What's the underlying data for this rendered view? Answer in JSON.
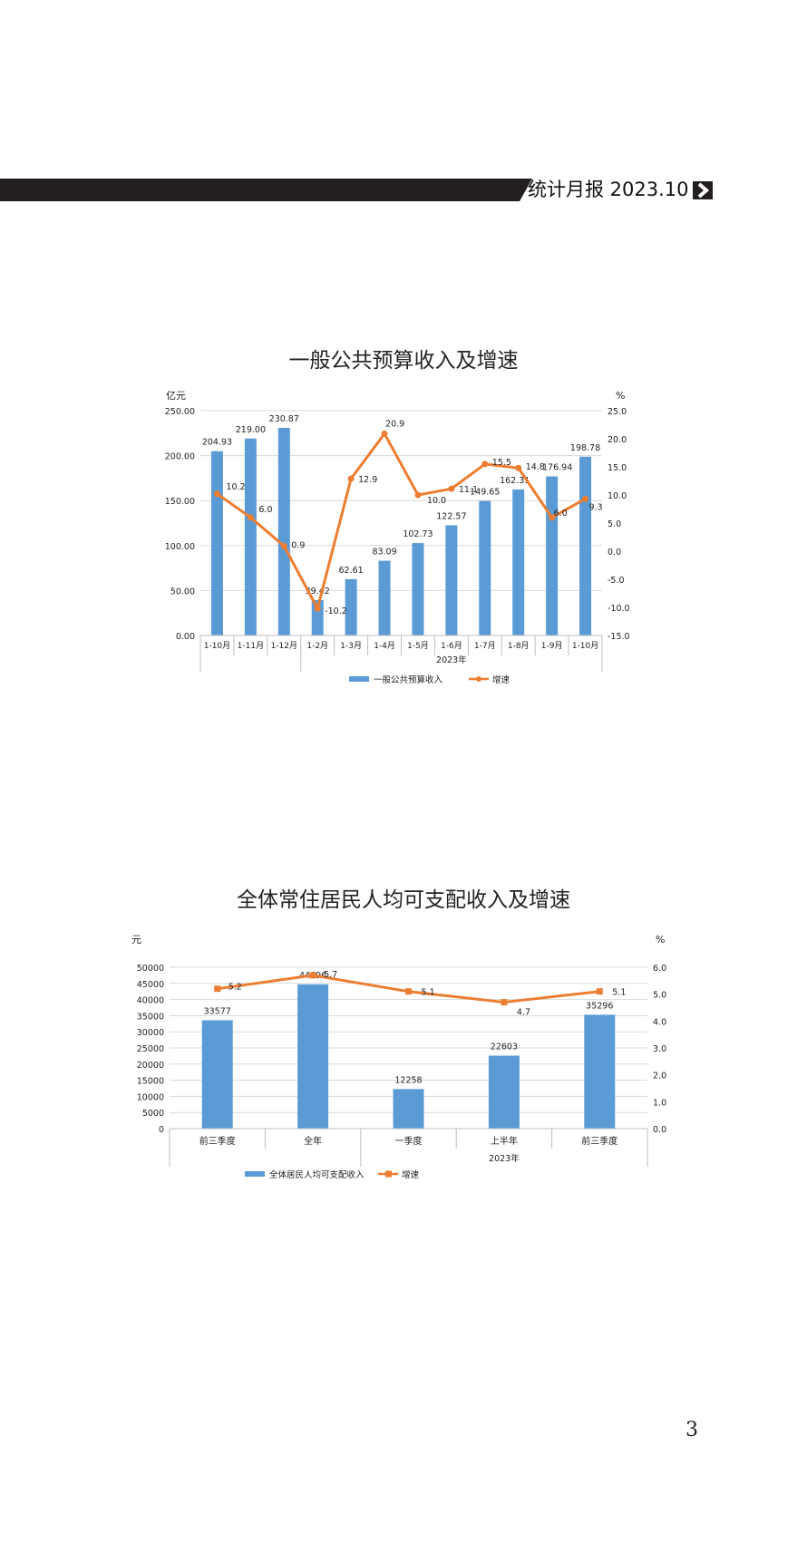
{
  "header": {
    "title": "统计月报 2023.10",
    "arrow_icon": "chevron-right-icon"
  },
  "page_number": "3",
  "chart_data": [
    {
      "type": "bar",
      "title": "一般公共预算收入及增速",
      "ylabel_left": "亿元",
      "ylabel_right": "%",
      "group_label": "2023年",
      "categories": [
        "1-10月",
        "1-11月",
        "1-12月",
        "1-2月",
        "1-3月",
        "1-4月",
        "1-5月",
        "1-6月",
        "1-7月",
        "1-8月",
        "1-9月",
        "1-10月"
      ],
      "left_ticks": [
        "0.00",
        "50.00",
        "100.00",
        "150.00",
        "200.00",
        "250.00"
      ],
      "right_ticks": [
        "-15.0",
        "-10.0",
        "-5.0",
        "0.0",
        "5.0",
        "10.0",
        "15.0",
        "20.0",
        "25.0"
      ],
      "ylim": [
        0,
        250
      ],
      "ylim_right": [
        -15,
        25
      ],
      "series": [
        {
          "name": "一般公共预算收入",
          "kind": "bar",
          "color": "#5b9bd5",
          "values": [
            204.93,
            219.0,
            230.87,
            39.42,
            62.61,
            83.09,
            102.73,
            122.57,
            149.65,
            162.31,
            176.94,
            198.78
          ],
          "labels": [
            "204.93",
            "219.00",
            "230.87",
            "39.42",
            "62.61",
            "83.09",
            "102.73",
            "122.57",
            "149.65",
            "162.31",
            "176.94",
            "198.78"
          ]
        },
        {
          "name": "增速",
          "kind": "line",
          "axis": "right",
          "color": "#ed7d31",
          "values": [
            10.2,
            6.0,
            0.9,
            -10.2,
            12.9,
            20.9,
            10.0,
            11.1,
            15.5,
            14.8,
            6.0,
            9.3
          ],
          "labels": [
            "10.2",
            "6.0",
            "0.9",
            "-10.2",
            "12.9",
            "20.9",
            "10.0",
            "11.1",
            "15.5",
            "14.8",
            "6.0",
            "9.3"
          ]
        }
      ]
    },
    {
      "type": "bar",
      "title": "全体常住居民人均可支配收入及增速",
      "ylabel_left": "元",
      "ylabel_right": "%",
      "group_label": "2023年",
      "categories": [
        "前三季度",
        "全年",
        "一季度",
        "上半年",
        "前三季度"
      ],
      "left_ticks": [
        "0",
        "5000",
        "10000",
        "15000",
        "20000",
        "25000",
        "30000",
        "35000",
        "40000",
        "45000",
        "50000"
      ],
      "right_ticks": [
        "0.0",
        "1.0",
        "2.0",
        "3.0",
        "4.0",
        "5.0",
        "6.0"
      ],
      "ylim": [
        0,
        50000
      ],
      "ylim_right": [
        0,
        6
      ],
      "series": [
        {
          "name": "全体居民人均可支配收入",
          "kind": "bar",
          "color": "#5b9bd5",
          "values": [
            33577,
            44696,
            12258,
            22603,
            35296
          ],
          "labels": [
            "33577",
            "44696",
            "12258",
            "22603",
            "35296"
          ]
        },
        {
          "name": "增速",
          "kind": "line",
          "axis": "right",
          "color": "#ed7d31",
          "values": [
            5.2,
            5.7,
            5.1,
            4.7,
            5.1
          ],
          "labels": [
            "5.2",
            "5.7",
            "5.1",
            "4.7",
            "5.1"
          ]
        }
      ]
    }
  ]
}
